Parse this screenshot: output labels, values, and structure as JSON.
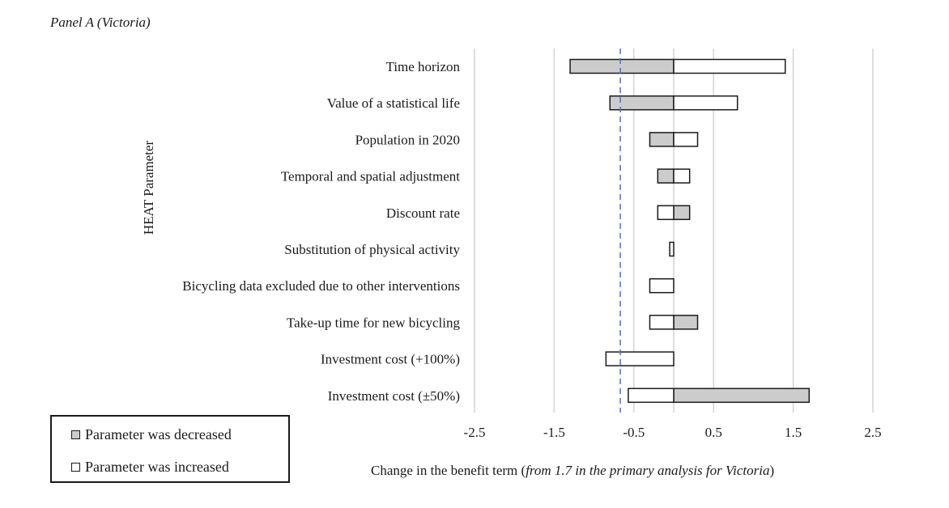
{
  "panel_title": "Panel A (Victoria)",
  "colors": {
    "decreased": "#cccccc",
    "increased": "#ffffff",
    "stroke": "#1a1a1a",
    "grid": "#d4d4d4",
    "reference_line": "#4a72c4"
  },
  "legend": {
    "decreased_label": "Parameter was decreased",
    "increased_label": "Parameter was increased"
  },
  "x_axis_title": {
    "prefix": "Change in the benefit term (",
    "italic": "from 1.7 in the primary analysis for Victoria",
    "suffix": ")"
  },
  "chart_data": {
    "type": "bar",
    "orientation": "horizontal",
    "title": "Panel A (Victoria)",
    "ylabel": "HEAT Parameter",
    "xlabel": "Change in the benefit term (from 1.7 in the primary analysis for Victoria)",
    "xlim": [
      -2.5,
      2.5
    ],
    "xticks": [
      -2.5,
      -1.5,
      -0.5,
      0.5,
      1.5,
      2.5
    ],
    "xtick_labels": [
      "-2.5",
      "-1.5",
      "-0.5",
      "0.5",
      "1.5",
      "2.5"
    ],
    "grid": "vertical",
    "reference_line_x": -0.67,
    "categories": [
      "Time horizon",
      "Value of a statistical life",
      "Population in 2020",
      "Temporal and spatial adjustment",
      "Discount rate",
      "Substitution of physical activity",
      "Bicycling data excluded due to other interventions",
      "Take-up time for new bicycling",
      "Investment cost (+100%)",
      "Investment cost (±50%)"
    ],
    "series": [
      {
        "name": "Parameter was decreased",
        "values": [
          -1.3,
          -0.8,
          -0.3,
          -0.2,
          0.2,
          null,
          null,
          0.3,
          null,
          1.7
        ]
      },
      {
        "name": "Parameter was increased",
        "values": [
          1.4,
          0.8,
          0.3,
          0.2,
          -0.2,
          -0.05,
          -0.3,
          -0.3,
          -0.85,
          -0.57
        ]
      }
    ]
  }
}
